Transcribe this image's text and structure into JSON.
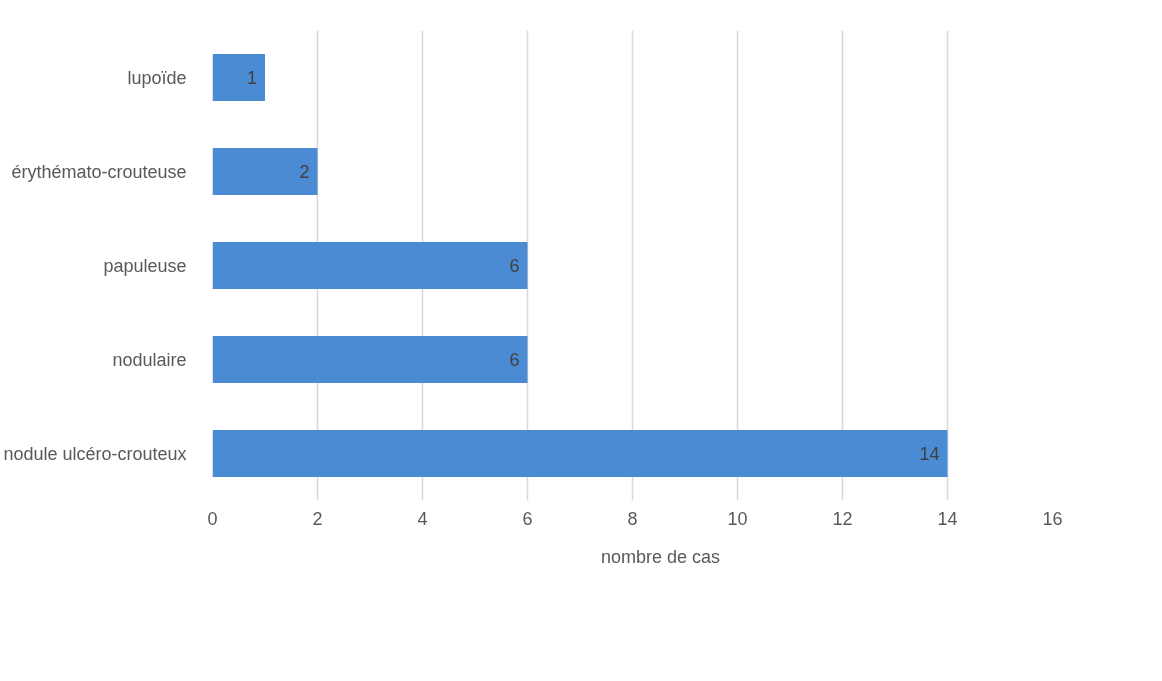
{
  "chart_data": {
    "type": "bar",
    "orientation": "horizontal",
    "categories": [
      "lupoïde",
      "érythémato-crouteuse",
      "papuleuse",
      "nodulaire",
      "nodule ulcéro-crouteux"
    ],
    "series": [
      {
        "name": "nombre de cas",
        "color": "#4a8bd3",
        "values": [
          1,
          2,
          6,
          6,
          14
        ]
      }
    ],
    "xlim": [
      0,
      16
    ],
    "xticks": [
      0,
      2,
      4,
      6,
      8,
      10,
      12,
      14,
      16
    ],
    "grid": "x",
    "legend": "bottom",
    "data_labels": true
  }
}
